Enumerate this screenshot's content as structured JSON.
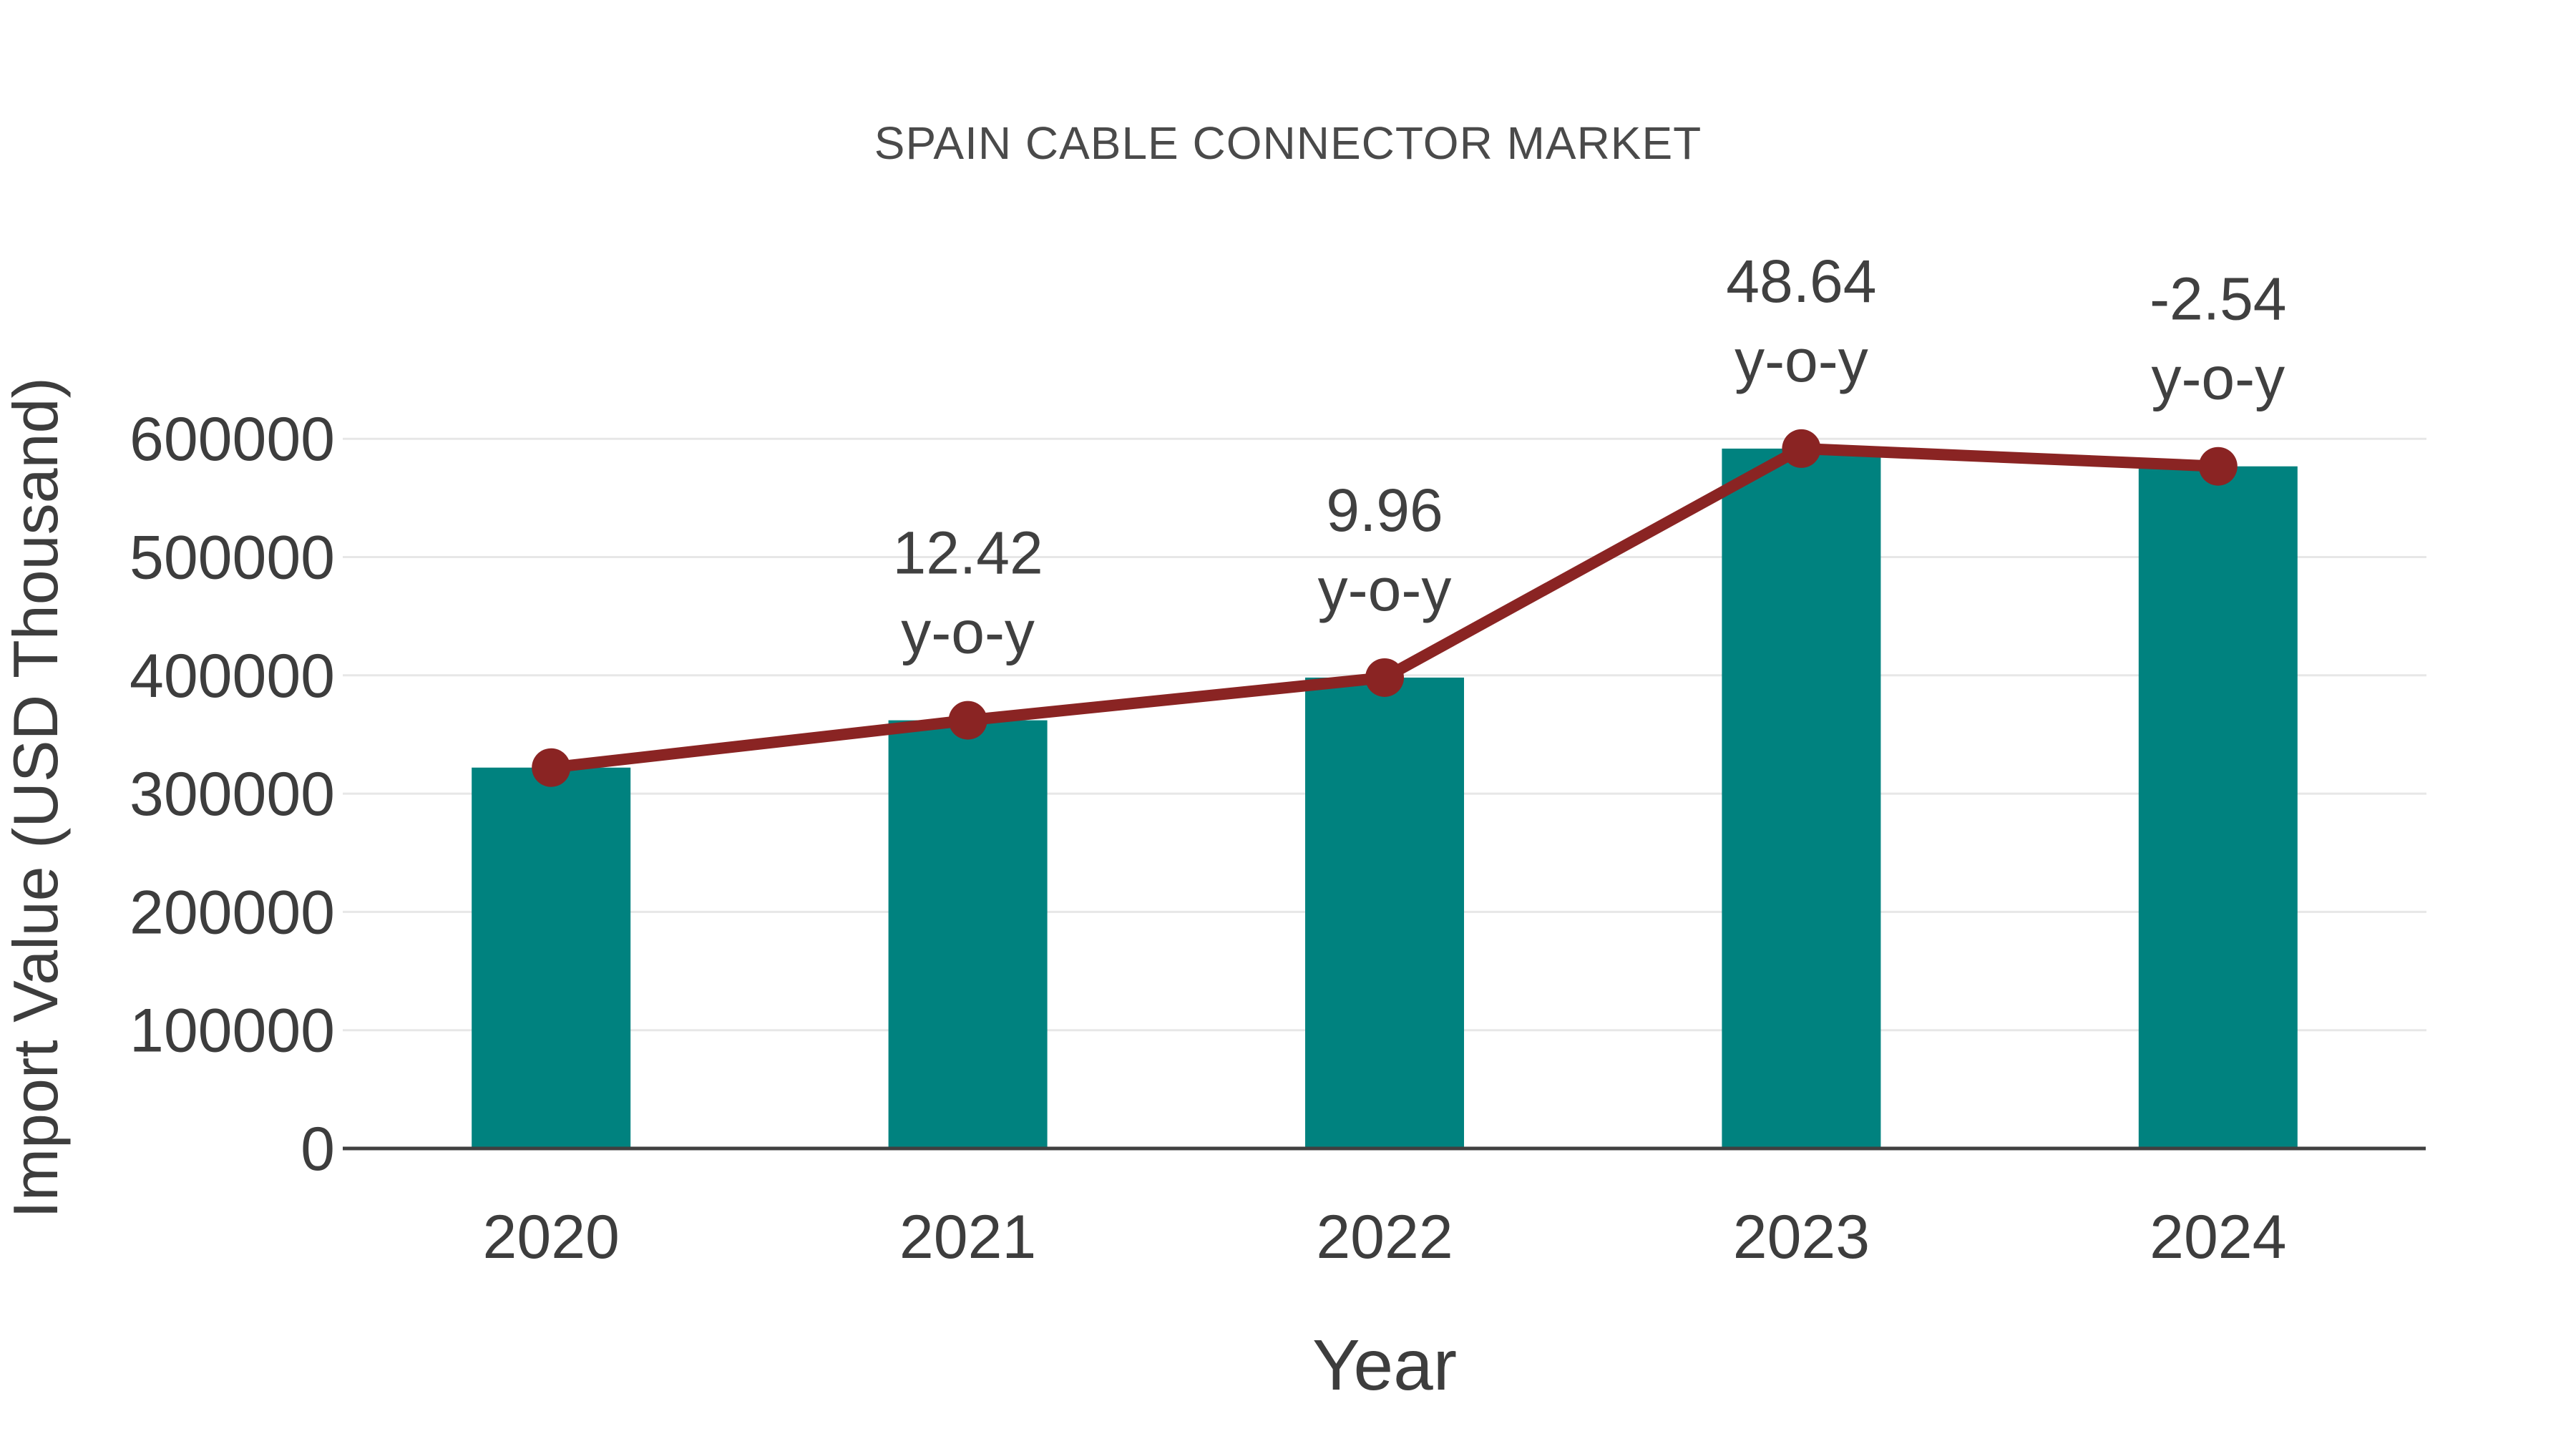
{
  "chart_data": {
    "type": "bar",
    "title": "SPAIN CABLE CONNECTOR MARKET",
    "xlabel": "Year",
    "ylabel": "Import Value (USD Thousand)",
    "categories": [
      "2020",
      "2021",
      "2022",
      "2023",
      "2024"
    ],
    "series": [
      {
        "name": "Import Value bars",
        "type": "bar",
        "color": "#00827f",
        "values": [
          322000,
          362000,
          398100,
          591700,
          576700
        ]
      },
      {
        "name": "Import Value trend line",
        "type": "line",
        "color": "#8a2423",
        "values": [
          322000,
          362000,
          398100,
          591700,
          576700
        ]
      }
    ],
    "annotations": [
      {
        "category": "2021",
        "value": "12.42",
        "label": "y-o-y"
      },
      {
        "category": "2022",
        "value": "9.96",
        "label": "y-o-y"
      },
      {
        "category": "2023",
        "value": "48.64",
        "label": "y-o-y"
      },
      {
        "category": "2024",
        "value": "-2.54",
        "label": "y-o-y"
      }
    ],
    "yticks": [
      0,
      100000,
      200000,
      300000,
      400000,
      500000,
      600000
    ],
    "ylim": [
      0,
      620000
    ],
    "grid": true,
    "legend_position": "none",
    "colors": {
      "bar": "#00827f",
      "line": "#8a2423",
      "marker": "#8a2423",
      "grid": "#e7e7e7",
      "axis": "#404040",
      "tick_text": "#3d3d3d",
      "title_text": "#4a4a4a",
      "annotation_text": "#404040",
      "background": "#ffffff"
    }
  }
}
